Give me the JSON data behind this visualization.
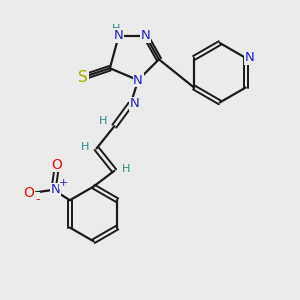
{
  "bg_color": "#ebebeb",
  "bond_color": "#1a1a1a",
  "N_color": "#2020cc",
  "S_color": "#aaaa00",
  "O_color": "#dd1111",
  "H_color": "#2d8b8b",
  "figsize": [
    3.0,
    3.0
  ],
  "dpi": 100,
  "xlim": [
    0,
    10
  ],
  "ylim": [
    0,
    10
  ]
}
